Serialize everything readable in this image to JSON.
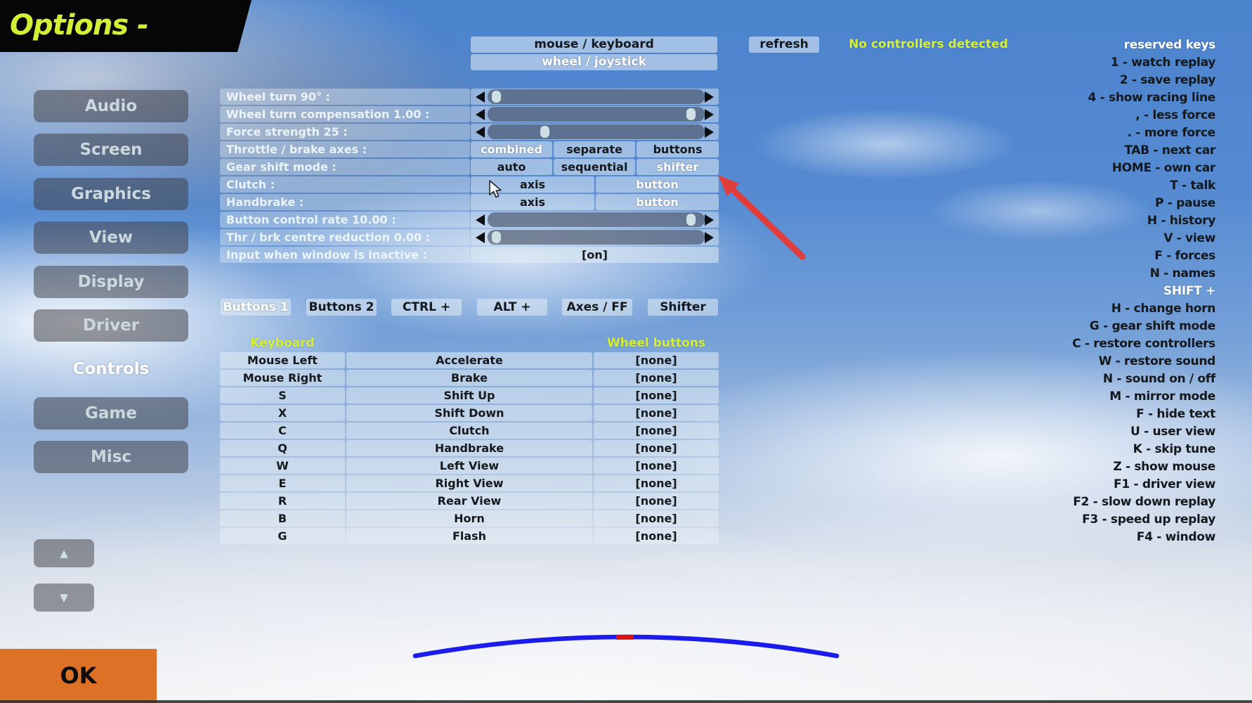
{
  "title": "Options - Controls",
  "ok_label": "OK",
  "pager": {
    "up_icon": "▲",
    "down_icon": "▼"
  },
  "colors": {
    "accent_yellow": "#d5ef39",
    "ok_orange": "#dd7226",
    "annotation_red": "#e23d3d",
    "steer_arc_blue": "#1b1beb",
    "steer_marker_red": "#da1212",
    "title_bg": "#060606"
  },
  "sidebar": {
    "items": [
      {
        "label": "Audio",
        "selected": false
      },
      {
        "label": "Screen",
        "selected": false
      },
      {
        "label": "Graphics",
        "selected": false
      },
      {
        "label": "View",
        "selected": false
      },
      {
        "label": "Display",
        "selected": false
      },
      {
        "label": "Driver",
        "selected": false
      },
      {
        "label": "Controls",
        "selected": true
      },
      {
        "label": "Game",
        "selected": false
      },
      {
        "label": "Misc",
        "selected": false
      }
    ]
  },
  "top": {
    "input_modes": [
      {
        "label": "mouse / keyboard",
        "selected": false
      },
      {
        "label": "wheel / joystick",
        "selected": true
      }
    ],
    "refresh_label": "refresh",
    "status": "No controllers detected"
  },
  "settings": {
    "rows": [
      {
        "label": "Wheel turn 90° :",
        "type": "slider",
        "pos": 0.01
      },
      {
        "label": "Wheel turn compensation 1.00 :",
        "type": "slider",
        "pos": 0.97
      },
      {
        "label": "Force strength 25 :",
        "type": "slider",
        "pos": 0.25
      },
      {
        "label": "Throttle / brake axes :",
        "type": "choices",
        "options": [
          {
            "label": "combined",
            "selected": true
          },
          {
            "label": "separate",
            "selected": false
          },
          {
            "label": "buttons",
            "selected": false
          }
        ]
      },
      {
        "label": "Gear shift mode :",
        "type": "choices",
        "options": [
          {
            "label": "auto",
            "selected": false
          },
          {
            "label": "sequential",
            "selected": false
          },
          {
            "label": "shifter",
            "selected": true
          }
        ]
      },
      {
        "label": "Clutch :",
        "type": "choices",
        "options": [
          {
            "label": "axis",
            "selected": false
          },
          {
            "label": "button",
            "selected": true
          }
        ]
      },
      {
        "label": "Handbrake :",
        "type": "choices",
        "options": [
          {
            "label": "axis",
            "selected": false
          },
          {
            "label": "button",
            "selected": true
          }
        ]
      },
      {
        "label": "Button control rate 10.00 :",
        "type": "slider",
        "pos": 0.97
      },
      {
        "label": "Thr / brk centre reduction 0.00 :",
        "type": "slider",
        "pos": 0.01
      },
      {
        "label": "Input when window is inactive :",
        "type": "value",
        "value": "[on]"
      }
    ]
  },
  "binding_tabs": [
    {
      "label": "Buttons 1",
      "selected": true
    },
    {
      "label": "Buttons 2",
      "selected": false
    },
    {
      "label": "CTRL +",
      "selected": false
    },
    {
      "label": "ALT +",
      "selected": false
    },
    {
      "label": "Axes / FF",
      "selected": false
    },
    {
      "label": "Shifter",
      "selected": false
    }
  ],
  "bindings": {
    "header_left": "Keyboard",
    "header_right": "Wheel buttons",
    "rows": [
      {
        "key": "Mouse Left",
        "action": "Accelerate",
        "wheel": "[none]"
      },
      {
        "key": "Mouse Right",
        "action": "Brake",
        "wheel": "[none]"
      },
      {
        "key": "S",
        "action": "Shift Up",
        "wheel": "[none]"
      },
      {
        "key": "X",
        "action": "Shift Down",
        "wheel": "[none]"
      },
      {
        "key": "C",
        "action": "Clutch",
        "wheel": "[none]"
      },
      {
        "key": "Q",
        "action": "Handbrake",
        "wheel": "[none]"
      },
      {
        "key": "W",
        "action": "Left View",
        "wheel": "[none]"
      },
      {
        "key": "E",
        "action": "Right View",
        "wheel": "[none]"
      },
      {
        "key": "R",
        "action": "Rear View",
        "wheel": "[none]"
      },
      {
        "key": "B",
        "action": "Horn",
        "wheel": "[none]"
      },
      {
        "key": "G",
        "action": "Flash",
        "wheel": "[none]"
      }
    ]
  },
  "reserved_keys": {
    "header": "reserved keys",
    "items": [
      {
        "text": "1 - watch replay",
        "highlight": false
      },
      {
        "text": "2 - save replay",
        "highlight": false
      },
      {
        "text": "4 - show racing line",
        "highlight": false
      },
      {
        "text": ", - less force",
        "highlight": false
      },
      {
        "text": ". - more force",
        "highlight": false
      },
      {
        "text": "TAB - next car",
        "highlight": false
      },
      {
        "text": "HOME - own car",
        "highlight": false
      },
      {
        "text": "T - talk",
        "highlight": false
      },
      {
        "text": "P - pause",
        "highlight": false
      },
      {
        "text": "H - history",
        "highlight": false
      },
      {
        "text": "V - view",
        "highlight": false
      },
      {
        "text": "F - forces",
        "highlight": false
      },
      {
        "text": "N - names",
        "highlight": false
      },
      {
        "text": "SHIFT +",
        "highlight": true
      },
      {
        "text": "H - change horn",
        "highlight": false
      },
      {
        "text": "G - gear shift mode",
        "highlight": false
      },
      {
        "text": "C - restore controllers",
        "highlight": false
      },
      {
        "text": "W - restore sound",
        "highlight": false
      },
      {
        "text": "N - sound on / off",
        "highlight": false
      },
      {
        "text": "M - mirror mode",
        "highlight": false
      },
      {
        "text": "F - hide text",
        "highlight": false
      },
      {
        "text": "U - user view",
        "highlight": false
      },
      {
        "text": "K - skip tune",
        "highlight": false
      },
      {
        "text": "Z - show mouse",
        "highlight": false
      },
      {
        "text": "F1 - driver view",
        "highlight": false
      },
      {
        "text": "F2 - slow down replay",
        "highlight": false
      },
      {
        "text": "F3 - speed up replay",
        "highlight": false
      },
      {
        "text": "F4 - window",
        "highlight": false
      }
    ]
  }
}
